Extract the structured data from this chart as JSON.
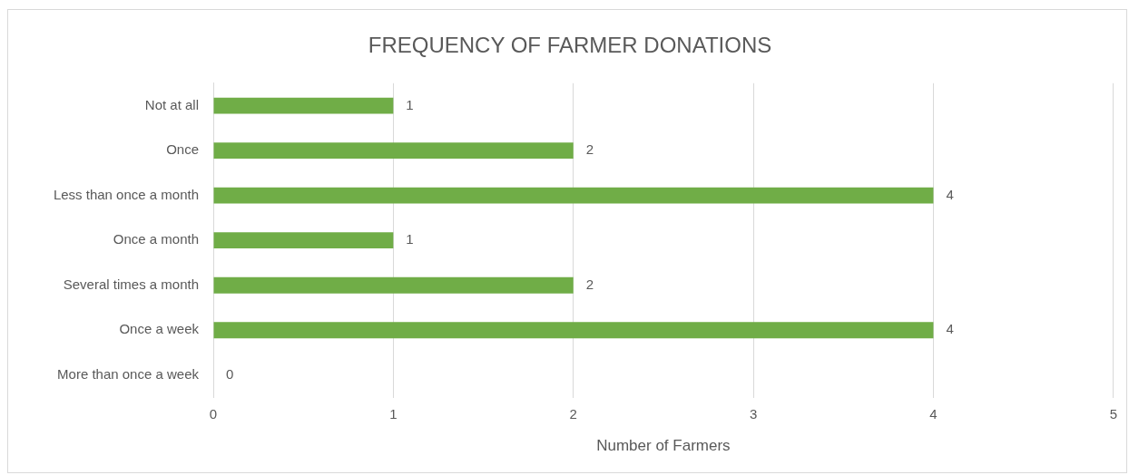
{
  "chart_data": {
    "type": "bar",
    "orientation": "horizontal",
    "title": "FREQUENCY OF FARMER DONATIONS",
    "xlabel": "Number of Farmers",
    "categories": [
      "Not at all",
      "Once",
      "Less than once a month",
      "Once a month",
      "Several times a month",
      "Once a week",
      "More than once a week"
    ],
    "values": [
      1,
      2,
      4,
      1,
      2,
      4,
      0
    ],
    "color": "#70ad47",
    "xlim": [
      0,
      5
    ],
    "xticks": [
      0,
      1,
      2,
      3,
      4,
      5
    ],
    "grid": "x",
    "data_labels": true
  }
}
